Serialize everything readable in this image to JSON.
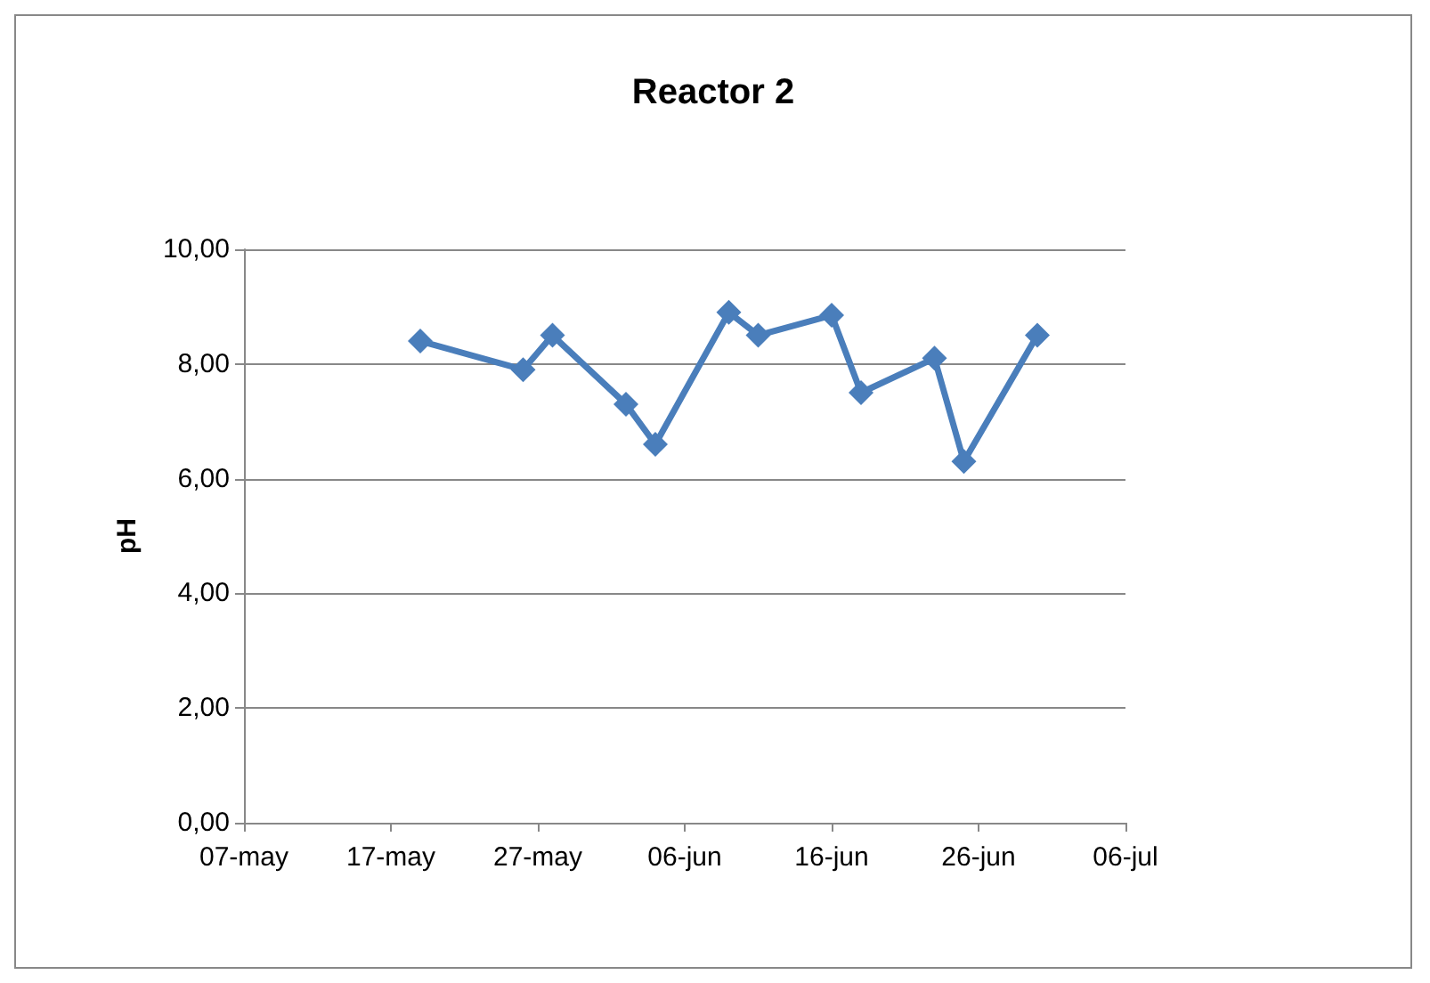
{
  "chart_data": {
    "type": "line",
    "title": "Reactor 2",
    "ylabel": "pH",
    "x": [
      "--05-19",
      "--05-26",
      "--05-28",
      "--06-02",
      "--06-04",
      "--06-09",
      "--06-11",
      "--06-16",
      "--06-18",
      "--06-23",
      "--06-25",
      "--06-30"
    ],
    "series": [
      {
        "color": "#4a7ebb",
        "values": [
          8.4,
          7.9,
          8.5,
          7.3,
          6.6,
          8.9,
          8.5,
          8.85,
          7.5,
          8.1,
          6.3,
          8.5
        ]
      }
    ],
    "xlim": [
      "--05-07",
      "--07-06"
    ],
    "xticks": [
      {
        "value": "--05-07",
        "label": "07-may"
      },
      {
        "value": "--05-17",
        "label": "17-may"
      },
      {
        "value": "--05-27",
        "label": "27-may"
      },
      {
        "value": "--06-06",
        "label": "06-jun"
      },
      {
        "value": "--06-16",
        "label": "16-jun"
      },
      {
        "value": "--06-26",
        "label": "26-jun"
      },
      {
        "value": "--07-06",
        "label": "06-jul"
      }
    ],
    "ylim": [
      0,
      10
    ],
    "yticks": [
      {
        "value": 0,
        "label": "0,00"
      },
      {
        "value": 2,
        "label": "2,00"
      },
      {
        "value": 4,
        "label": "4,00"
      },
      {
        "value": 6,
        "label": "6,00"
      },
      {
        "value": 8,
        "label": "8,00"
      },
      {
        "value": 10,
        "label": "10,00"
      }
    ],
    "grid": "y",
    "marker": "diamond",
    "line_style": "solid"
  }
}
